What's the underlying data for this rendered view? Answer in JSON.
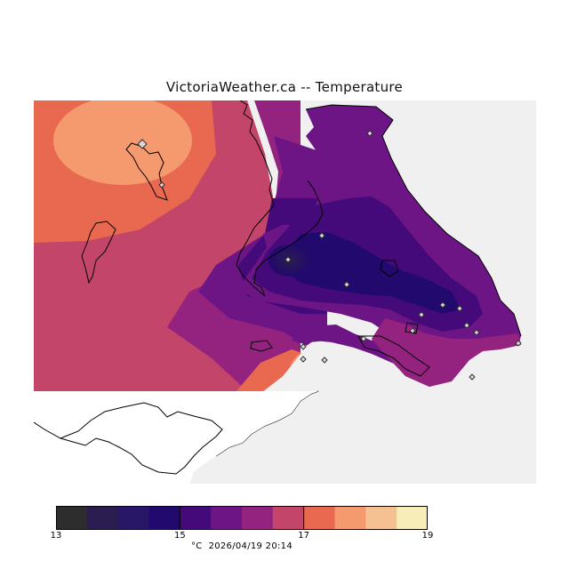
{
  "title": "VictoriaWeather.ca -- Temperature",
  "legend": {
    "unit": "°C",
    "timestamp": "2026/04/19 20:14",
    "ticks": [
      "13",
      "15",
      "17",
      "19"
    ],
    "min": 13,
    "max": 19,
    "step": 0.5,
    "colors": [
      "#2d2d2d",
      "#2b1d4f",
      "#271766",
      "#22096d",
      "#450a7a",
      "#6d1585",
      "#93237e",
      "#c3466a",
      "#e8694f",
      "#f49a6e",
      "#f5c193",
      "#f6edb8"
    ]
  },
  "map": {
    "background_color": "#f0f0f0",
    "land_outline_color": "#000000",
    "station_marker": "diamond-marker"
  }
}
